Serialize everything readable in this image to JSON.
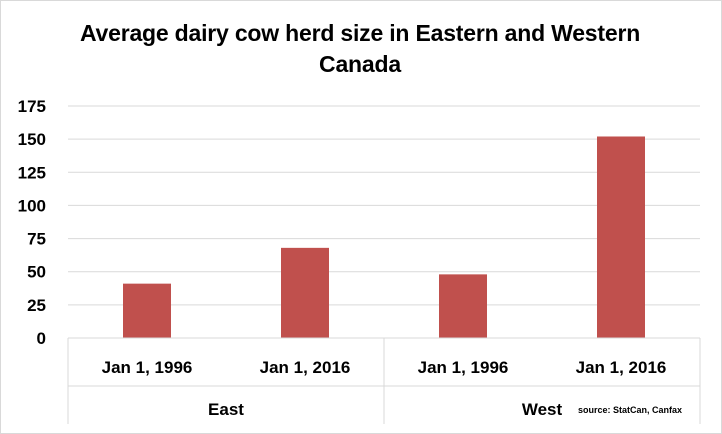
{
  "chart_data": {
    "type": "bar",
    "title": "Average dairy cow herd size in Eastern and Western Canada",
    "categories": [
      "Jan 1, 1996",
      "Jan 1, 2016",
      "Jan 1, 1996",
      "Jan 1, 2016"
    ],
    "groups": [
      {
        "label": "East",
        "categories": [
          "Jan 1, 1996",
          "Jan 1, 2016"
        ]
      },
      {
        "label": "West",
        "categories": [
          "Jan 1, 1996",
          "Jan 1, 2016"
        ]
      }
    ],
    "values": [
      41,
      68,
      48,
      152
    ],
    "ylim": [
      0,
      175
    ],
    "yticks": [
      "0",
      "25",
      "50",
      "75",
      "100",
      "125",
      "150",
      "175"
    ],
    "xlabel": "",
    "ylabel": "",
    "grid": true,
    "bar_color": "#c0504d",
    "grid_color": "#d9d9d9",
    "source_note": "source: StatCan, Canfax"
  }
}
